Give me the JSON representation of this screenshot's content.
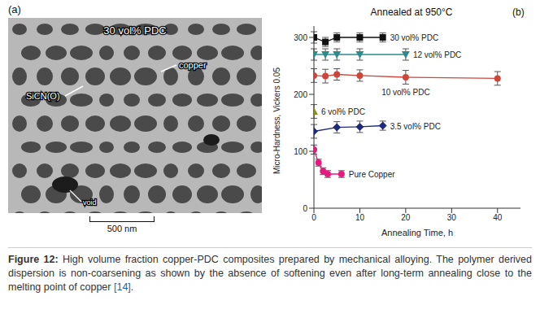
{
  "panel_a": {
    "label": "(a)",
    "title": "30 vol% PDC",
    "annotations": [
      "SiCN(O)",
      "copper",
      "void"
    ],
    "scale_bar": "500 nm"
  },
  "panel_b_label": "(b)",
  "chart_data": {
    "type": "line",
    "title": "Annealed at 950°C",
    "x_label": "Annealing Time, h",
    "y_label": "Micro-Hardness, Vickers 0.05",
    "xlim": [
      0,
      45
    ],
    "xticks": [
      0,
      10,
      20,
      30,
      40
    ],
    "ylim": [
      0,
      320
    ],
    "yticks": [
      0,
      100,
      200,
      300
    ],
    "grid": false,
    "series": [
      {
        "name": "30 vol% PDC",
        "color": "#111111",
        "marker": "square",
        "x": [
          0,
          2.5,
          5,
          10,
          15
        ],
        "values": [
          300,
          292,
          300,
          300,
          300
        ],
        "errors": [
          10,
          8,
          8,
          8,
          8
        ]
      },
      {
        "name": "12 vol% PDC",
        "color": "#2e8b8b",
        "marker": "triangle_down",
        "x": [
          0,
          2.5,
          5,
          10,
          20
        ],
        "values": [
          270,
          270,
          270,
          270,
          270
        ],
        "errors": [
          10,
          10,
          10,
          10,
          10
        ]
      },
      {
        "name": "10 vol% PDC",
        "color": "#d0453a",
        "marker": "circle",
        "x": [
          0,
          2.5,
          5,
          10,
          20,
          40
        ],
        "values": [
          233,
          232,
          235,
          233,
          230,
          228
        ],
        "errors": [
          12,
          12,
          10,
          10,
          12,
          12
        ]
      },
      {
        "name": "6 vol% PDC",
        "color": "#8b8b1e",
        "marker": "triangle",
        "x": [
          0
        ],
        "values": [
          170
        ],
        "errors": [
          12
        ]
      },
      {
        "name": "3.5 vol% PDC",
        "color": "#1f2a7a",
        "marker": "diamond",
        "x": [
          0,
          5,
          10,
          15
        ],
        "values": [
          135,
          142,
          143,
          145
        ],
        "errors": [
          12,
          10,
          10,
          8
        ]
      },
      {
        "name": "Pure Copper",
        "color": "#e6197f",
        "marker": "circle",
        "x": [
          0,
          1,
          2,
          3,
          6
        ],
        "values": [
          103,
          80,
          65,
          60,
          60
        ],
        "errors": [
          8,
          6,
          6,
          6,
          6
        ]
      }
    ]
  },
  "caption": {
    "label": "Figure 12:",
    "text": "High volume fraction copper-PDC composites prepared by mechanical alloying. The polymer derived dispersion is non-coarsening as shown by the absence of softening even after long-term annealing close to the melting point of copper",
    "ref": "[14]",
    "end": "."
  }
}
